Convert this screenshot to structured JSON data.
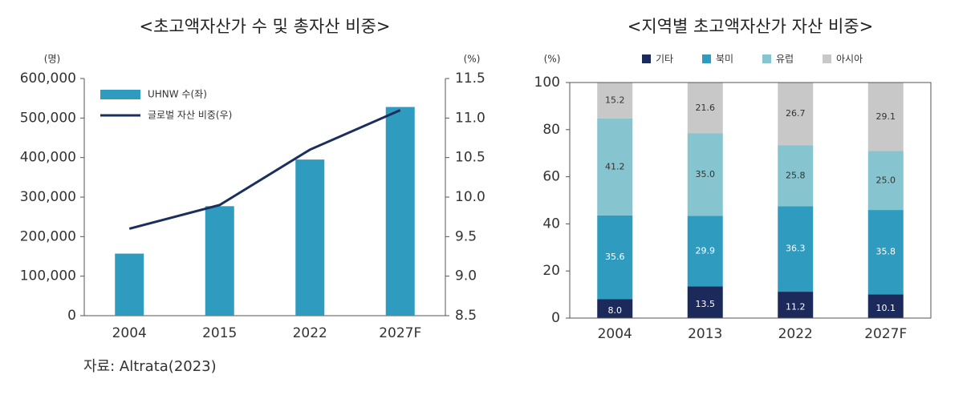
{
  "chart_data": [
    {
      "type": "combo",
      "title": "<초고액자산가 수 및 총자산 비중>",
      "y_label": "(명)",
      "y2_label": "(%)",
      "categories": [
        "2004",
        "2015",
        "2022",
        "2027F"
      ],
      "series": [
        {
          "name": "UHNW 수(좌)",
          "type": "bar",
          "color": "#2f9bbf",
          "values": [
            157000,
            277000,
            395000,
            528000
          ]
        },
        {
          "name": "글로벌 자산 비중(우)",
          "type": "line",
          "axis": "y2",
          "color": "#1b2f5e",
          "values": [
            9.6,
            9.9,
            10.6,
            11.1
          ]
        }
      ],
      "ylim": [
        0,
        600000
      ],
      "yticks": [
        0,
        {
          "value": 100000,
          "label": "100,000"
        },
        {
          "value": 200000,
          "label": "200,000"
        },
        {
          "value": 300000,
          "label": "300,000"
        },
        {
          "value": 400000,
          "label": "400,000"
        },
        {
          "value": 500000,
          "label": "500,000"
        },
        {
          "value": 600000,
          "label": "600,000"
        }
      ],
      "y2lim": [
        8.5,
        11.5
      ],
      "y2ticks": [
        8.5,
        {
          "value": 9,
          "label": "9.0"
        },
        9.5,
        {
          "value": 10,
          "label": "10.0"
        },
        10.5,
        {
          "value": 11,
          "label": "11.0"
        },
        11.5
      ],
      "legend": "upper left",
      "grid": false,
      "source": "자료: Altrata(2023)"
    },
    {
      "type": "stacked_bar",
      "title": "<지역별 초고액자산가 자산 비중>",
      "y_label": "(%)",
      "categories": [
        "2004",
        "2013",
        "2022",
        "2027F"
      ],
      "series": [
        {
          "name": "기타",
          "color": "#1b2a5a",
          "values": [
            8.0,
            13.5,
            11.2,
            10.1
          ],
          "value_labels": [
            "8.0",
            "13.5",
            "11.2",
            "10.1"
          ]
        },
        {
          "name": "북미",
          "color": "#2f9bbf",
          "values": [
            35.6,
            29.9,
            36.3,
            35.8
          ],
          "value_labels": [
            "35.6",
            "29.9",
            "36.3",
            "35.8"
          ]
        },
        {
          "name": "유럽",
          "color": "#86c4cf",
          "values": [
            41.2,
            35.0,
            25.8,
            25.0
          ],
          "value_labels": [
            "41.2",
            "35.0",
            "25.8",
            "25.0"
          ]
        },
        {
          "name": "아시아",
          "color": "#c8c8c8",
          "values": [
            15.2,
            21.6,
            26.7,
            29.1
          ],
          "value_labels": [
            "15.2",
            "21.6",
            "26.7",
            "29.1"
          ]
        }
      ],
      "ylim": [
        0,
        100
      ],
      "yticks": [
        0,
        20,
        40,
        60,
        80,
        100
      ],
      "legend": "top",
      "grid": false
    }
  ]
}
